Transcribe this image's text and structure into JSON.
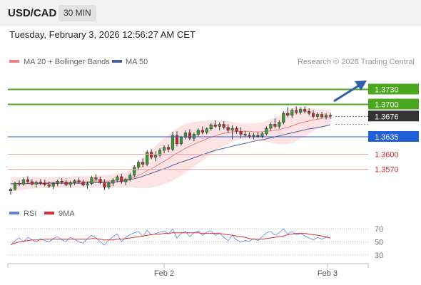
{
  "header": {
    "symbol": "USD/CAD",
    "timeframe": "30 MIN",
    "datetime": "Tuesday, February 3, 2026 12:56:27 AM CET"
  },
  "legend": {
    "ma20_label": "MA 20 + Bollinger Bands",
    "ma50_label": "MA 50",
    "credit": "Research © 2026 Trading Central",
    "rsi_label": "RSI",
    "ma9_label": "9MA"
  },
  "colors": {
    "ma20": "#f47c7c",
    "bollinger_fill": "#fde3e3",
    "ma50": "#4a5f9d",
    "candle_up": "#3a9a3a",
    "candle_down": "#cc2a2a",
    "resistance": "#4ba81e",
    "support_pivot": "#1f5fd8",
    "support": "#f2a0a0",
    "current_price": "#333333",
    "rsi": "#5b83e0",
    "ma9": "#e03030",
    "arrow": "#2e5fa8"
  },
  "chart_data": [
    {
      "type": "candlestick",
      "ylim": [
        1.3515,
        1.3765
      ],
      "x_ticks": [
        "Feb 2",
        "Feb 3"
      ],
      "levels": [
        {
          "label": "1.3730",
          "value": 1.373,
          "kind": "resistance"
        },
        {
          "label": "1.3700",
          "value": 1.37,
          "kind": "resistance"
        },
        {
          "label": "1.3676",
          "value": 1.3676,
          "kind": "current"
        },
        {
          "label": "1.3635",
          "value": 1.3635,
          "kind": "pivot"
        },
        {
          "label": "1.3600",
          "value": 1.36,
          "kind": "support"
        },
        {
          "label": "1.3570",
          "value": 1.357,
          "kind": "support"
        }
      ],
      "ohlc": [
        [
          1.3527,
          1.3533,
          1.3519,
          1.353
        ],
        [
          1.353,
          1.3545,
          1.3527,
          1.3542
        ],
        [
          1.3542,
          1.3548,
          1.3536,
          1.354
        ],
        [
          1.354,
          1.3553,
          1.3537,
          1.3549
        ],
        [
          1.3549,
          1.3556,
          1.3542,
          1.3545
        ],
        [
          1.3545,
          1.355,
          1.3537,
          1.354
        ],
        [
          1.354,
          1.3547,
          1.3533,
          1.3544
        ],
        [
          1.3544,
          1.355,
          1.3538,
          1.3542
        ],
        [
          1.3542,
          1.3549,
          1.3536,
          1.3539
        ],
        [
          1.3539,
          1.3545,
          1.3532,
          1.3536
        ],
        [
          1.3536,
          1.3544,
          1.353,
          1.3541
        ],
        [
          1.3541,
          1.3549,
          1.3536,
          1.3546
        ],
        [
          1.3546,
          1.3552,
          1.354,
          1.3544
        ],
        [
          1.3544,
          1.3548,
          1.3536,
          1.3539
        ],
        [
          1.3539,
          1.3546,
          1.3533,
          1.3543
        ],
        [
          1.3543,
          1.355,
          1.3538,
          1.3547
        ],
        [
          1.3547,
          1.3553,
          1.3541,
          1.3544
        ],
        [
          1.3544,
          1.3549,
          1.3536,
          1.3538
        ],
        [
          1.3538,
          1.3545,
          1.3531,
          1.3541
        ],
        [
          1.3541,
          1.3556,
          1.3538,
          1.3553
        ],
        [
          1.3553,
          1.356,
          1.3546,
          1.355
        ],
        [
          1.355,
          1.3555,
          1.354,
          1.3543
        ],
        [
          1.3543,
          1.355,
          1.3528,
          1.3534
        ],
        [
          1.3534,
          1.3545,
          1.353,
          1.3542
        ],
        [
          1.3542,
          1.3552,
          1.3536,
          1.3548
        ],
        [
          1.3548,
          1.3558,
          1.3544,
          1.3555
        ],
        [
          1.3555,
          1.3561,
          1.3541,
          1.3545
        ],
        [
          1.3545,
          1.3553,
          1.3538,
          1.355
        ],
        [
          1.355,
          1.3562,
          1.3546,
          1.3558
        ],
        [
          1.3558,
          1.3578,
          1.3554,
          1.3574
        ],
        [
          1.3574,
          1.3588,
          1.3568,
          1.3584
        ],
        [
          1.3584,
          1.3592,
          1.3574,
          1.358
        ],
        [
          1.358,
          1.3608,
          1.3576,
          1.3604
        ],
        [
          1.3604,
          1.361,
          1.359,
          1.3594
        ],
        [
          1.3594,
          1.3606,
          1.3586,
          1.3598
        ],
        [
          1.3598,
          1.3612,
          1.3594,
          1.3608
        ],
        [
          1.3608,
          1.3618,
          1.3602,
          1.3614
        ],
        [
          1.3614,
          1.362,
          1.3604,
          1.361
        ],
        [
          1.361,
          1.3645,
          1.3606,
          1.3638
        ],
        [
          1.3638,
          1.3646,
          1.3616,
          1.3621
        ],
        [
          1.3621,
          1.3637,
          1.3617,
          1.3634
        ],
        [
          1.3634,
          1.3648,
          1.363,
          1.3643
        ],
        [
          1.3643,
          1.365,
          1.3628,
          1.3632
        ],
        [
          1.3632,
          1.3644,
          1.3626,
          1.364
        ],
        [
          1.364,
          1.3652,
          1.3636,
          1.3648
        ],
        [
          1.3648,
          1.3656,
          1.364,
          1.3644
        ],
        [
          1.3644,
          1.3654,
          1.364,
          1.3651
        ],
        [
          1.3651,
          1.3662,
          1.3647,
          1.3659
        ],
        [
          1.3659,
          1.3668,
          1.3652,
          1.3656
        ],
        [
          1.3656,
          1.3664,
          1.3648,
          1.366
        ],
        [
          1.366,
          1.3666,
          1.365,
          1.3654
        ],
        [
          1.3654,
          1.366,
          1.3642,
          1.3648
        ],
        [
          1.3648,
          1.3658,
          1.363,
          1.3652
        ],
        [
          1.3652,
          1.3656,
          1.3641,
          1.3646
        ],
        [
          1.3646,
          1.3654,
          1.3632,
          1.364
        ],
        [
          1.364,
          1.3647,
          1.3634,
          1.3638
        ],
        [
          1.3638,
          1.3644,
          1.3632,
          1.3636
        ],
        [
          1.3636,
          1.3643,
          1.363,
          1.3638
        ],
        [
          1.3638,
          1.3644,
          1.3633,
          1.3636
        ],
        [
          1.3636,
          1.3645,
          1.3632,
          1.3641
        ],
        [
          1.3641,
          1.3656,
          1.3638,
          1.3652
        ],
        [
          1.3652,
          1.3664,
          1.3647,
          1.366
        ],
        [
          1.366,
          1.3672,
          1.3652,
          1.3656
        ],
        [
          1.3656,
          1.3668,
          1.3651,
          1.3664
        ],
        [
          1.3664,
          1.3686,
          1.366,
          1.3682
        ],
        [
          1.3682,
          1.3694,
          1.3674,
          1.3678
        ],
        [
          1.3678,
          1.3692,
          1.3673,
          1.3688
        ],
        [
          1.3688,
          1.3696,
          1.368,
          1.3684
        ],
        [
          1.3684,
          1.3694,
          1.368,
          1.369
        ],
        [
          1.369,
          1.3696,
          1.3682,
          1.3686
        ],
        [
          1.3686,
          1.3692,
          1.3678,
          1.3682
        ],
        [
          1.3682,
          1.3688,
          1.3672,
          1.3676
        ],
        [
          1.3676,
          1.3684,
          1.367,
          1.368
        ],
        [
          1.368,
          1.3685,
          1.3672,
          1.3675
        ],
        [
          1.3675,
          1.3682,
          1.367,
          1.3678
        ],
        [
          1.3678,
          1.3683,
          1.3671,
          1.3676
        ]
      ],
      "ma20": [
        1.354,
        1.3541,
        1.3541,
        1.3542,
        1.3542,
        1.3543,
        1.3543,
        1.3543,
        1.3543,
        1.3543,
        1.3544,
        1.3544,
        1.3544,
        1.3544,
        1.3544,
        1.3545,
        1.3545,
        1.3545,
        1.3545,
        1.3546,
        1.3546,
        1.3546,
        1.3546,
        1.3546,
        1.3547,
        1.3548,
        1.3548,
        1.3549,
        1.3551,
        1.3554,
        1.3558,
        1.3562,
        1.3567,
        1.3571,
        1.3576,
        1.3581,
        1.3586,
        1.3591,
        1.3597,
        1.3602,
        1.3607,
        1.3612,
        1.3616,
        1.362,
        1.3624,
        1.3627,
        1.3631,
        1.3634,
        1.3637,
        1.364,
        1.3642,
        1.3644,
        1.3645,
        1.3646,
        1.3646,
        1.3646,
        1.3646,
        1.3645,
        1.3645,
        1.3645,
        1.3646,
        1.3647,
        1.3648,
        1.3649,
        1.3652,
        1.3654,
        1.3657,
        1.366,
        1.3663,
        1.3665,
        1.3667,
        1.3669,
        1.367,
        1.3672,
        1.3673,
        1.3674
      ],
      "bb_width": [
        0.0014,
        0.0014,
        0.0013,
        0.0013,
        0.0012,
        0.0012,
        0.0012,
        0.0011,
        0.0011,
        0.0011,
        0.0011,
        0.0011,
        0.0011,
        0.0011,
        0.0011,
        0.0011,
        0.0011,
        0.0011,
        0.0011,
        0.0012,
        0.0012,
        0.0012,
        0.0013,
        0.0013,
        0.0013,
        0.0014,
        0.0014,
        0.0015,
        0.0017,
        0.0021,
        0.0026,
        0.003,
        0.0035,
        0.0038,
        0.0041,
        0.0044,
        0.0046,
        0.0048,
        0.005,
        0.005,
        0.005,
        0.0049,
        0.0047,
        0.0045,
        0.0042,
        0.004,
        0.0037,
        0.0034,
        0.0031,
        0.0028,
        0.0025,
        0.0022,
        0.002,
        0.0018,
        0.0016,
        0.0016,
        0.0016,
        0.0017,
        0.0018,
        0.0019,
        0.0021,
        0.0024,
        0.0027,
        0.0029,
        0.0032,
        0.0034,
        0.0035,
        0.0034,
        0.0032,
        0.0029,
        0.0026,
        0.0023,
        0.002,
        0.0018,
        0.0016,
        0.0015
      ],
      "ma50": [
        1.3541,
        1.3541,
        1.3541,
        1.3541,
        1.3541,
        1.3541,
        1.3541,
        1.3541,
        1.3541,
        1.3542,
        1.3542,
        1.3542,
        1.3542,
        1.3542,
        1.3542,
        1.3542,
        1.3542,
        1.3542,
        1.3543,
        1.3543,
        1.3543,
        1.3543,
        1.3543,
        1.3543,
        1.3544,
        1.3545,
        1.3546,
        1.3547,
        1.3549,
        1.3551,
        1.3553,
        1.3556,
        1.3559,
        1.3562,
        1.3565,
        1.3568,
        1.3571,
        1.3574,
        1.3578,
        1.3581,
        1.3584,
        1.3587,
        1.359,
        1.3593,
        1.3596,
        1.3599,
        1.3602,
        1.3605,
        1.3608,
        1.361,
        1.3612,
        1.3614,
        1.3616,
        1.3618,
        1.362,
        1.3622,
        1.3624,
        1.3626,
        1.3628,
        1.3629,
        1.3631,
        1.3633,
        1.3635,
        1.3637,
        1.3639,
        1.3641,
        1.3643,
        1.3645,
        1.3647,
        1.3649,
        1.3651,
        1.3652,
        1.3654,
        1.3655,
        1.3657,
        1.3659
      ]
    },
    {
      "type": "line",
      "ylim": [
        20,
        80
      ],
      "y_ticks": [
        70,
        50,
        30
      ],
      "series": [
        {
          "name": "RSI",
          "values": [
            45,
            52,
            56,
            50,
            57,
            53,
            50,
            55,
            52,
            50,
            55,
            58,
            53,
            51,
            57,
            54,
            50,
            48,
            55,
            60,
            56,
            50,
            45,
            53,
            58,
            62,
            50,
            57,
            61,
            64,
            66,
            58,
            68,
            60,
            63,
            65,
            67,
            62,
            70,
            56,
            63,
            66,
            58,
            64,
            67,
            60,
            65,
            67,
            60,
            63,
            57,
            52,
            60,
            53,
            50,
            52,
            51,
            55,
            52,
            58,
            64,
            66,
            60,
            64,
            70,
            62,
            66,
            61,
            63,
            59,
            56,
            53,
            57,
            54,
            57,
            56
          ]
        },
        {
          "name": "9MA",
          "values": [
            46,
            48,
            50,
            51,
            52,
            53,
            53,
            53,
            54,
            54,
            54,
            54,
            54,
            54,
            54,
            54,
            54,
            54,
            54,
            55,
            55,
            54,
            53,
            53,
            53,
            54,
            54,
            55,
            56,
            57,
            58,
            59,
            60,
            61,
            62,
            62,
            63,
            63,
            64,
            64,
            64,
            64,
            64,
            64,
            64,
            63,
            63,
            63,
            63,
            63,
            62,
            61,
            60,
            59,
            58,
            57,
            55,
            54,
            54,
            54,
            55,
            56,
            57,
            58,
            59,
            61,
            62,
            63,
            63,
            63,
            62,
            61,
            60,
            59,
            58,
            56
          ]
        }
      ]
    }
  ]
}
